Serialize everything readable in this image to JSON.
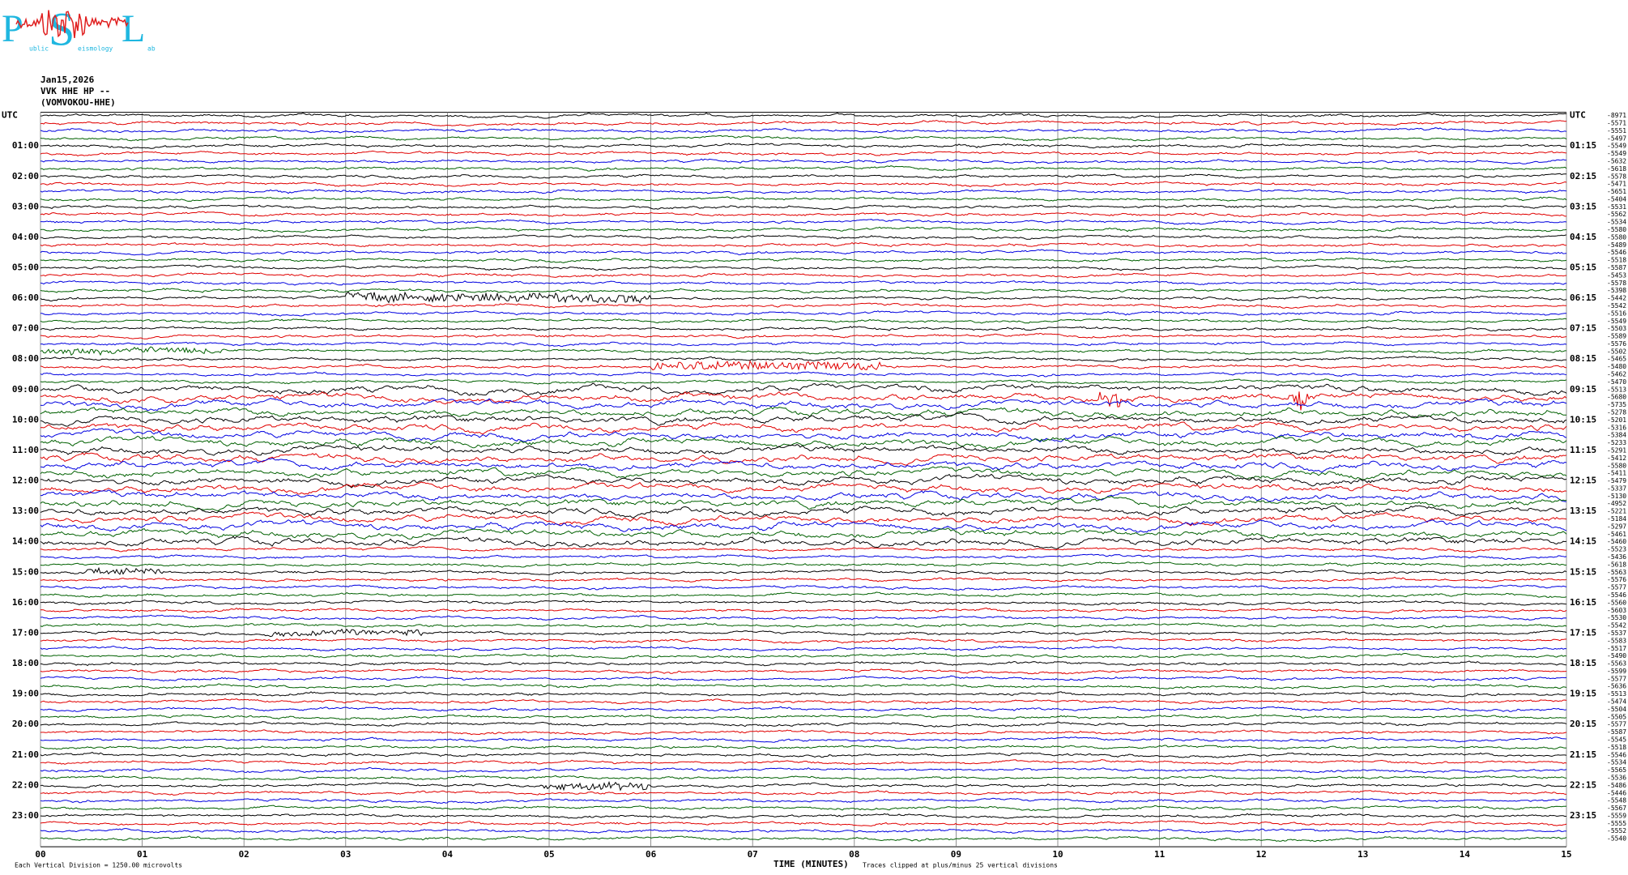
{
  "logo": {
    "letters": [
      "P",
      "S",
      "L"
    ],
    "small": [
      "ublic",
      "eismology",
      "ab"
    ]
  },
  "header": {
    "date": "Jan15,2026",
    "channel": "VVK HHE HP --",
    "station": "(VOMVOKOU-HHE)"
  },
  "left_labels": [
    "UTC",
    "01:00",
    "02:00",
    "03:00",
    "04:00",
    "05:00",
    "06:00",
    "07:00",
    "08:00",
    "09:00",
    "10:00",
    "11:00",
    "12:00",
    "13:00",
    "14:00",
    "15:00",
    "16:00",
    "17:00",
    "18:00",
    "19:00",
    "20:00",
    "21:00",
    "22:00",
    "23:00"
  ],
  "right_labels": [
    "UTC",
    "01:15",
    "02:15",
    "03:15",
    "04:15",
    "05:15",
    "06:15",
    "07:15",
    "08:15",
    "09:15",
    "10:15",
    "11:15",
    "12:15",
    "13:15",
    "14:15",
    "15:15",
    "16:15",
    "17:15",
    "18:15",
    "19:15",
    "20:15",
    "21:15",
    "22:15",
    "23:15"
  ],
  "trace_offsets": [
    -8971,
    -5571,
    -5551,
    -5497,
    -5549,
    -5549,
    -5632,
    -5618,
    -5578,
    -5471,
    -5651,
    -5404,
    -5531,
    -5562,
    -5534,
    -5580,
    -5580,
    -5489,
    -5546,
    -5518,
    -5587,
    -5453,
    -5578,
    -5398,
    -5442,
    -5542,
    -5516,
    -5549,
    -5503,
    -5589,
    -5576,
    -5502,
    -5465,
    -5480,
    -5462,
    -5470,
    -5513,
    -5680,
    -5735,
    -5278,
    -5201,
    -5316,
    -5384,
    -5233,
    -5291,
    -5412,
    -5580,
    -5411,
    -5479,
    -5337,
    -5130,
    -4952,
    -5221,
    -5184,
    -5297,
    -5461,
    -5460,
    -5523,
    -5436,
    -5618,
    -5563,
    -5576,
    -5577,
    -5546,
    -5560,
    -5603,
    -5530,
    -5542,
    -5537,
    -5583,
    -5517,
    -5490,
    -5563,
    -5599,
    -5577,
    -5636,
    -5513,
    -5474,
    -5504,
    -5505,
    -5577,
    -5587,
    -5545,
    -5518,
    -5546,
    -5534,
    -5565,
    -5536,
    -5486,
    -5446,
    -5548,
    -5567,
    -5559,
    -5555,
    -5552,
    -5540
  ],
  "x_ticks": [
    "00",
    "01",
    "02",
    "03",
    "04",
    "05",
    "06",
    "07",
    "08",
    "09",
    "10",
    "11",
    "12",
    "13",
    "14",
    "15"
  ],
  "footer": {
    "scale": "Each Vertical Division = 1250.00 microvolts",
    "axis_title": "TIME (MINUTES)",
    "clip_note": "Traces clipped at plus/minus 25 vertical divisions"
  }
}
